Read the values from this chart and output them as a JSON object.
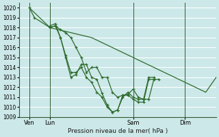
{
  "title": "",
  "xlabel": "Pression niveau de la mer( hPa )",
  "ylabel": "",
  "background_color": "#cce8e8",
  "grid_color": "#ffffff",
  "line_color": "#2d6b2d",
  "marker_color": "#2d6b2d",
  "ylim": [
    1009,
    1020.5
  ],
  "yticks": [
    1009,
    1010,
    1011,
    1012,
    1013,
    1014,
    1015,
    1016,
    1017,
    1018,
    1019,
    1020
  ],
  "xlim": [
    0,
    228
  ],
  "xtick_positions": [
    12,
    36,
    132,
    192
  ],
  "xtick_labels": [
    "Ven",
    "Lun",
    "Sam",
    "Dim"
  ],
  "day_vlines": [
    12,
    36,
    132,
    192
  ],
  "lines": [
    {
      "points": [
        [
          12,
          1020
        ],
        [
          18,
          1019
        ],
        [
          36,
          1018
        ],
        [
          42,
          1018.2
        ],
        [
          48,
          1017.8
        ],
        [
          54,
          1017.5
        ],
        [
          60,
          1017
        ],
        [
          66,
          1016
        ],
        [
          72,
          1015
        ],
        [
          78,
          1013.5
        ],
        [
          84,
          1014
        ],
        [
          90,
          1014
        ],
        [
          96,
          1013
        ],
        [
          102,
          1013
        ],
        [
          108,
          1011.5
        ],
        [
          114,
          1011
        ],
        [
          120,
          1011.2
        ],
        [
          126,
          1011.3
        ],
        [
          132,
          1011.8
        ],
        [
          138,
          1011
        ],
        [
          144,
          1010.8
        ],
        [
          150,
          1010.8
        ],
        [
          156,
          1012.8
        ],
        [
          162,
          1012.8
        ]
      ],
      "with_markers": true
    },
    {
      "points": [
        [
          36,
          1018.2
        ],
        [
          42,
          1018.4
        ],
        [
          48,
          1017
        ],
        [
          54,
          1015
        ],
        [
          60,
          1013
        ],
        [
          66,
          1013.3
        ],
        [
          72,
          1014.3
        ],
        [
          78,
          1014.3
        ],
        [
          84,
          1013
        ],
        [
          90,
          1012.8
        ],
        [
          96,
          1011.4
        ],
        [
          102,
          1010.2
        ],
        [
          108,
          1009.5
        ],
        [
          114,
          1009.7
        ],
        [
          120,
          1011.2
        ],
        [
          126,
          1011.2
        ],
        [
          132,
          1010.8
        ],
        [
          138,
          1010.5
        ],
        [
          144,
          1010.5
        ],
        [
          150,
          1012.8
        ],
        [
          156,
          1012.8
        ]
      ],
      "with_markers": true
    },
    {
      "points": [
        [
          36,
          1018
        ],
        [
          42,
          1018.2
        ],
        [
          48,
          1017
        ],
        [
          54,
          1015.2
        ],
        [
          60,
          1013.5
        ],
        [
          66,
          1013.5
        ],
        [
          72,
          1014
        ],
        [
          78,
          1013
        ],
        [
          84,
          1012.5
        ],
        [
          90,
          1011.5
        ],
        [
          96,
          1011
        ],
        [
          102,
          1010
        ],
        [
          108,
          1009.5
        ],
        [
          114,
          1009.7
        ],
        [
          120,
          1011
        ],
        [
          126,
          1011.5
        ],
        [
          132,
          1011
        ],
        [
          138,
          1010.8
        ],
        [
          144,
          1010.8
        ],
        [
          150,
          1013
        ],
        [
          156,
          1013
        ]
      ],
      "with_markers": true
    },
    {
      "points": [
        [
          12,
          1020
        ],
        [
          36,
          1018
        ],
        [
          84,
          1017
        ],
        [
          108,
          1016
        ],
        [
          132,
          1015
        ],
        [
          156,
          1014
        ],
        [
          180,
          1013
        ],
        [
          192,
          1012.5
        ],
        [
          204,
          1012
        ],
        [
          216,
          1011.5
        ],
        [
          228,
          1013
        ]
      ],
      "with_markers": false
    }
  ]
}
